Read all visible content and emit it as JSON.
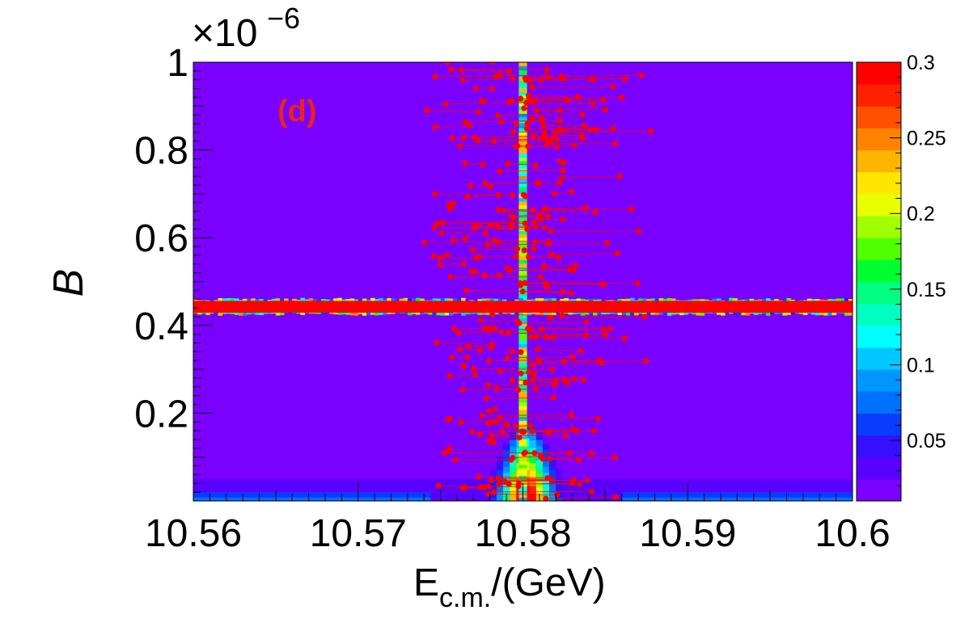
{
  "chart_data": {
    "type": "heatmap",
    "panel_label": "(d)",
    "xlabel": "E",
    "xlabel_sub": "c.m.",
    "xlabel_unit": "/(GeV)",
    "ylabel": "B",
    "y_exponent_base": "×10",
    "y_exponent_power": "−6",
    "xlim": [
      10.56,
      10.6
    ],
    "ylim": [
      0,
      1.0
    ],
    "x_ticks": [
      "10.56",
      "10.57",
      "10.58",
      "10.59",
      "10.6"
    ],
    "y_ticks": [
      "0.2",
      "0.4",
      "0.6",
      "0.8",
      "1"
    ],
    "colorbar": {
      "zlim": [
        0.01,
        0.3
      ],
      "ticks": [
        "0.05",
        "0.1",
        "0.15",
        "0.2",
        "0.25",
        "0.3"
      ]
    },
    "features": {
      "vertical_band_x": 10.58,
      "horizontal_band_y": 0.443,
      "horizontal_band_halfwidth": 0.014
    },
    "scatter": {
      "color": "#ff0000",
      "marker": "circle",
      "x_center": 10.58,
      "y_range": [
        0.0,
        1.0
      ],
      "n_points": 180
    }
  }
}
